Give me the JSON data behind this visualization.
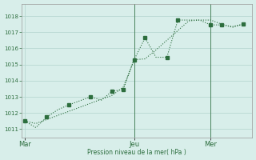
{
  "background_color": "#d8eeea",
  "grid_color": "#b8d8d2",
  "line_color": "#2d6e3e",
  "xlabel": "Pression niveau de la mer( hPa )",
  "ylim": [
    1010.5,
    1018.75
  ],
  "yticks": [
    1011,
    1012,
    1013,
    1014,
    1015,
    1016,
    1017,
    1018
  ],
  "xtick_labels": [
    "Mar",
    "Jeu",
    "Mer"
  ],
  "xtick_positions": [
    0,
    10,
    17
  ],
  "vline_positions": [
    10,
    17
  ],
  "line_smooth_x": [
    0,
    1,
    2,
    3,
    4,
    5,
    6,
    7,
    8,
    9,
    10,
    11,
    12,
    13,
    14,
    15,
    16,
    17,
    18,
    19,
    20
  ],
  "line_smooth_y": [
    1011.5,
    1011.35,
    1011.6,
    1011.85,
    1012.1,
    1012.35,
    1012.6,
    1012.85,
    1013.1,
    1013.6,
    1015.3,
    1015.35,
    1015.9,
    1016.5,
    1017.1,
    1017.7,
    1017.75,
    1017.75,
    1017.5,
    1017.3,
    1017.5
  ],
  "line_jagged_x": [
    0,
    1,
    2,
    3,
    4,
    5,
    6,
    7,
    8,
    9,
    10,
    11,
    12,
    13,
    14,
    15,
    16,
    17,
    18,
    19,
    20
  ],
  "line_jagged_y": [
    1011.5,
    1011.1,
    1011.75,
    1012.2,
    1012.5,
    1012.75,
    1013.0,
    1012.8,
    1013.35,
    1013.45,
    1015.3,
    1016.65,
    1015.45,
    1015.45,
    1017.75,
    1017.75,
    1017.75,
    1017.45,
    1017.45,
    1017.35,
    1017.5
  ],
  "markers_x": [
    0,
    2,
    4,
    6,
    8,
    9,
    10,
    11,
    13,
    14,
    17,
    18,
    20
  ],
  "markers_y": [
    1011.5,
    1011.75,
    1012.5,
    1013.0,
    1013.35,
    1013.45,
    1015.3,
    1016.65,
    1015.45,
    1017.75,
    1017.45,
    1017.45,
    1017.5
  ]
}
